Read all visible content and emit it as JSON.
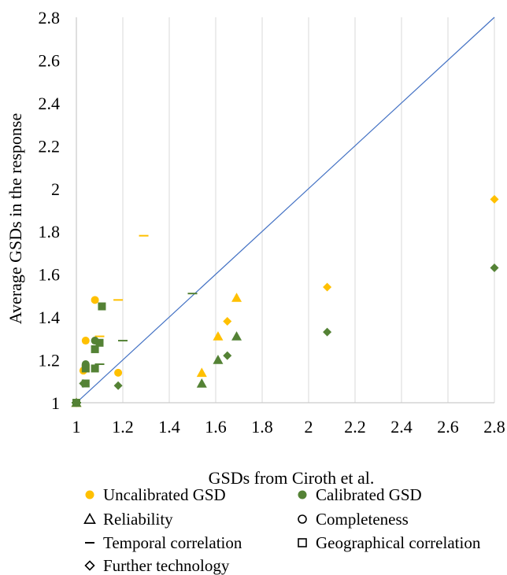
{
  "chart_data": {
    "type": "scatter",
    "xlabel": "GSDs from Ciroth et al.",
    "ylabel": "Average GSDs in the response",
    "xlim": [
      1,
      2.8
    ],
    "ylim": [
      1,
      2.8
    ],
    "x_ticks": [
      "1",
      "1.2",
      "1.4",
      "1.6",
      "1.8",
      "2",
      "2.2",
      "2.4",
      "2.6",
      "2.8"
    ],
    "y_ticks": [
      "1",
      "1.2",
      "1.4",
      "1.6",
      "1.8",
      "2",
      "2.2",
      "2.4",
      "2.6",
      "2.8"
    ],
    "grid": "vertical",
    "reference_line": {
      "from": [
        1,
        1
      ],
      "to": [
        2.8,
        2.8
      ],
      "color": "#4472C4"
    },
    "colors": {
      "Uncalibrated GSD": "#FFC000",
      "Calibrated GSD": "#548235"
    },
    "legend": {
      "placement": "bottom",
      "color_entries": [
        "Uncalibrated GSD",
        "Calibrated GSD"
      ],
      "shape_entries": [
        {
          "label": "Reliability",
          "marker": "triangle"
        },
        {
          "label": "Completeness",
          "marker": "circle"
        },
        {
          "label": "Temporal correlation",
          "marker": "dash"
        },
        {
          "label": "Geographical correlation",
          "marker": "square"
        },
        {
          "label": "Further technology",
          "marker": "diamond"
        }
      ]
    },
    "series": [
      {
        "name": "Uncalibrated GSD",
        "indicator": "Reliability",
        "marker": "triangle",
        "points": [
          [
            1.0,
            1.0
          ],
          [
            1.54,
            1.14
          ],
          [
            1.61,
            1.31
          ],
          [
            1.69,
            1.49
          ]
        ]
      },
      {
        "name": "Uncalibrated GSD",
        "indicator": "Completeness",
        "marker": "circle",
        "points": [
          [
            1.0,
            1.0
          ],
          [
            1.03,
            1.15
          ],
          [
            1.04,
            1.29
          ],
          [
            1.08,
            1.48
          ],
          [
            1.18,
            1.14
          ]
        ]
      },
      {
        "name": "Uncalibrated GSD",
        "indicator": "Temporal correlation",
        "marker": "dash",
        "points": [
          [
            1.0,
            1.0
          ],
          [
            1.1,
            1.31
          ],
          [
            1.18,
            1.48
          ],
          [
            1.29,
            1.78
          ]
        ]
      },
      {
        "name": "Uncalibrated GSD",
        "indicator": "Geographical correlation",
        "marker": "square",
        "points": [
          [
            1.0,
            1.0
          ],
          [
            1.04,
            1.16
          ]
        ]
      },
      {
        "name": "Uncalibrated GSD",
        "indicator": "Further technology",
        "marker": "diamond",
        "points": [
          [
            1.0,
            1.0
          ],
          [
            1.65,
            1.38
          ],
          [
            2.08,
            1.54
          ],
          [
            2.8,
            1.95
          ]
        ]
      },
      {
        "name": "Calibrated GSD",
        "indicator": "Reliability",
        "marker": "triangle",
        "points": [
          [
            1.0,
            1.0
          ],
          [
            1.54,
            1.09
          ],
          [
            1.61,
            1.2
          ],
          [
            1.69,
            1.31
          ]
        ]
      },
      {
        "name": "Calibrated GSD",
        "indicator": "Completeness",
        "marker": "circle",
        "points": [
          [
            1.0,
            1.0
          ],
          [
            1.04,
            1.18
          ],
          [
            1.08,
            1.29
          ]
        ]
      },
      {
        "name": "Calibrated GSD",
        "indicator": "Temporal correlation",
        "marker": "dash",
        "points": [
          [
            1.0,
            1.0
          ],
          [
            1.1,
            1.18
          ],
          [
            1.2,
            1.29
          ],
          [
            1.5,
            1.51
          ]
        ]
      },
      {
        "name": "Calibrated GSD",
        "indicator": "Geographical correlation",
        "marker": "square",
        "points": [
          [
            1.0,
            1.0
          ],
          [
            1.04,
            1.09
          ],
          [
            1.04,
            1.16
          ],
          [
            1.08,
            1.16
          ],
          [
            1.08,
            1.25
          ],
          [
            1.1,
            1.28
          ],
          [
            1.11,
            1.45
          ]
        ]
      },
      {
        "name": "Calibrated GSD",
        "indicator": "Further technology",
        "marker": "diamond",
        "points": [
          [
            1.0,
            1.0
          ],
          [
            1.03,
            1.09
          ],
          [
            1.18,
            1.08
          ],
          [
            1.65,
            1.22
          ],
          [
            2.08,
            1.33
          ],
          [
            2.8,
            1.63
          ]
        ]
      }
    ]
  }
}
